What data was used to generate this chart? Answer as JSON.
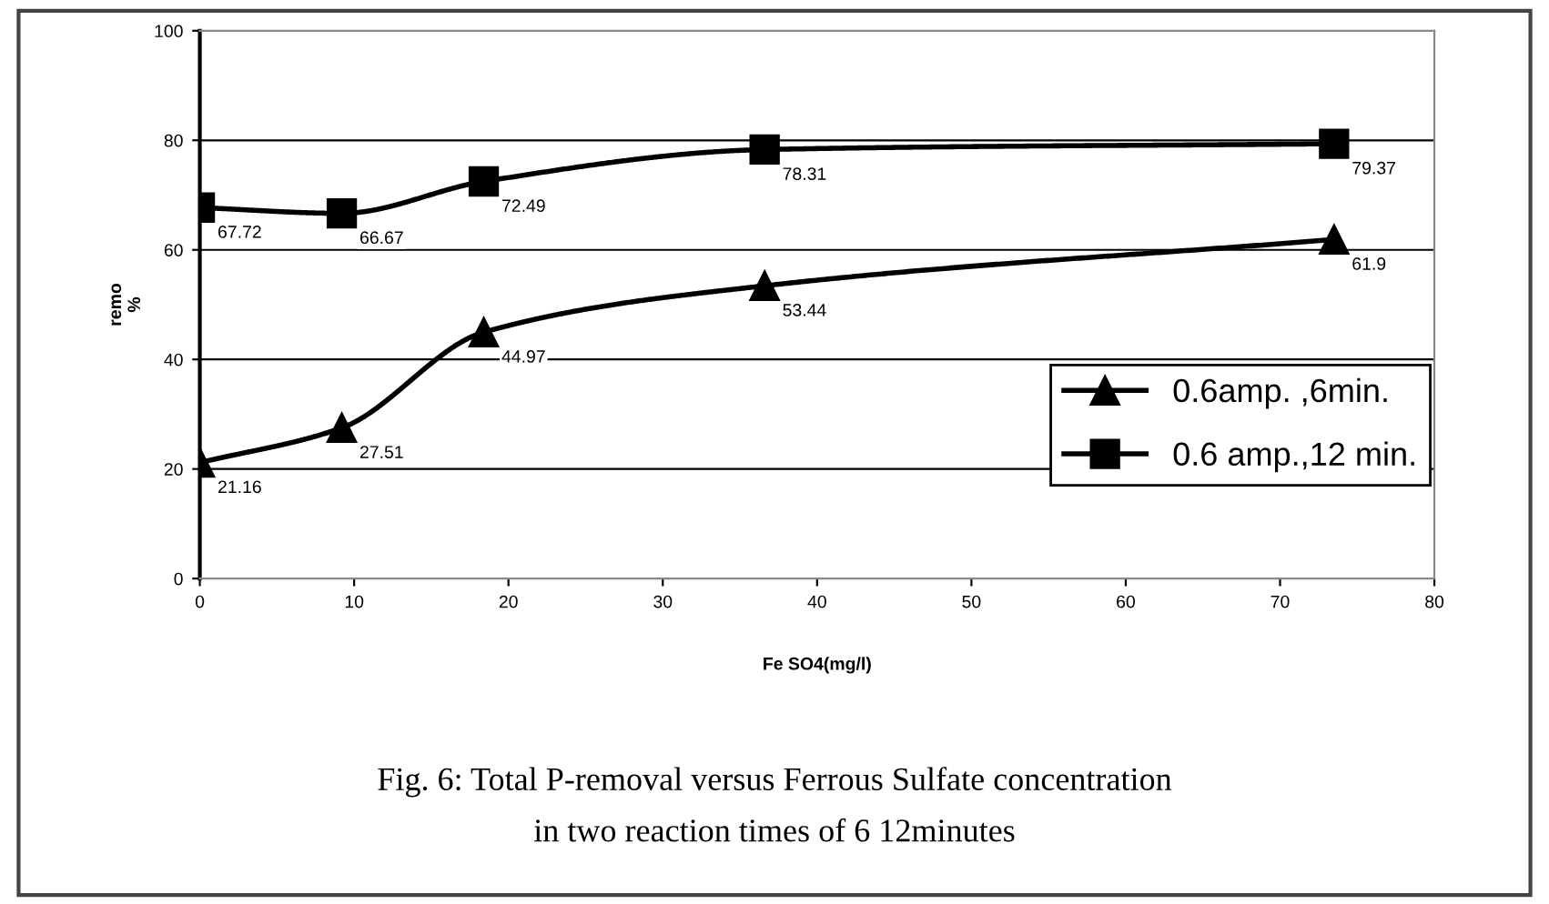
{
  "chart_data": {
    "type": "line",
    "xlabel": "Fe SO4(mg/l)",
    "ylabel": "remo\n%",
    "x": [
      0,
      9.2,
      18.4,
      36.6,
      73.5
    ],
    "series": [
      {
        "name": "0.6amp. ,6min.",
        "color": "#000000",
        "marker": "triangle",
        "values": [
          21.16,
          27.51,
          44.97,
          53.44,
          61.9
        ]
      },
      {
        "name": "0.6 amp.,12 min.",
        "color": "#000000",
        "marker": "square",
        "values": [
          67.72,
          66.67,
          72.49,
          78.31,
          79.37
        ]
      }
    ],
    "xlim": [
      0,
      80
    ],
    "xticks": [
      0,
      10,
      20,
      30,
      40,
      50,
      60,
      70,
      80
    ],
    "ylim": [
      0,
      100
    ],
    "yticks": [
      0,
      20,
      40,
      60,
      80,
      100
    ],
    "grid": "y",
    "legend": "right",
    "data_labels": true,
    "line_style": "solid",
    "annotations": [
      "Fig. 6: Total P-removal versus Ferrous Sulfate concentration",
      "in two reaction times of 6 12minutes"
    ]
  }
}
